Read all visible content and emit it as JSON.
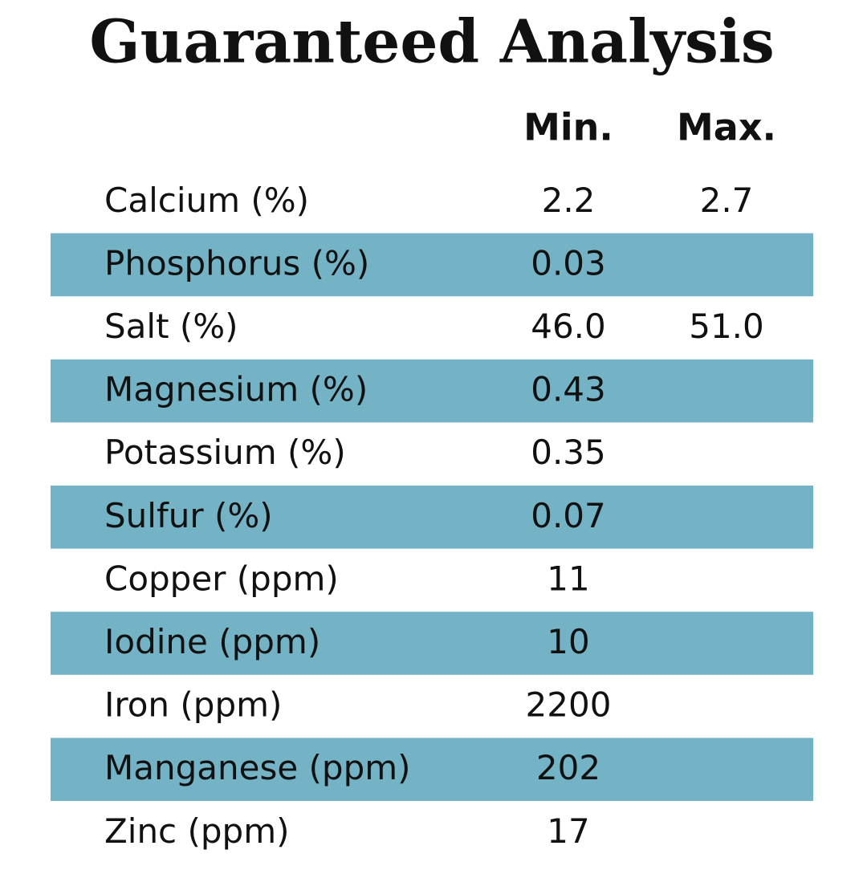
{
  "title": "Guaranteed Analysis",
  "table": {
    "header": [
      "Min.",
      "Max."
    ],
    "rows": [
      {
        "name": "Calcium (%)",
        "min": "2.2",
        "max": "2.7"
      },
      {
        "name": "Phosphorus (%)",
        "min": "0.03"
      },
      {
        "name": "Salt (%)",
        "min": "46.0",
        "max": "51.0"
      },
      {
        "name": "Magnesium (%)",
        "min": "0.43"
      },
      {
        "name": "Potassium (%)",
        "min": "0.35"
      },
      {
        "name": "Sulfur (%)",
        "min": "0.07"
      },
      {
        "name": "Copper (ppm)",
        "min": "11"
      },
      {
        "name": "Iodine (ppm)",
        "min": "10"
      },
      {
        "name": "Iron (ppm)",
        "min": "2200"
      },
      {
        "name": "Manganese (ppm)",
        "min": "202"
      },
      {
        "name": "Zinc (ppm)",
        "min": "17"
      }
    ]
  }
}
